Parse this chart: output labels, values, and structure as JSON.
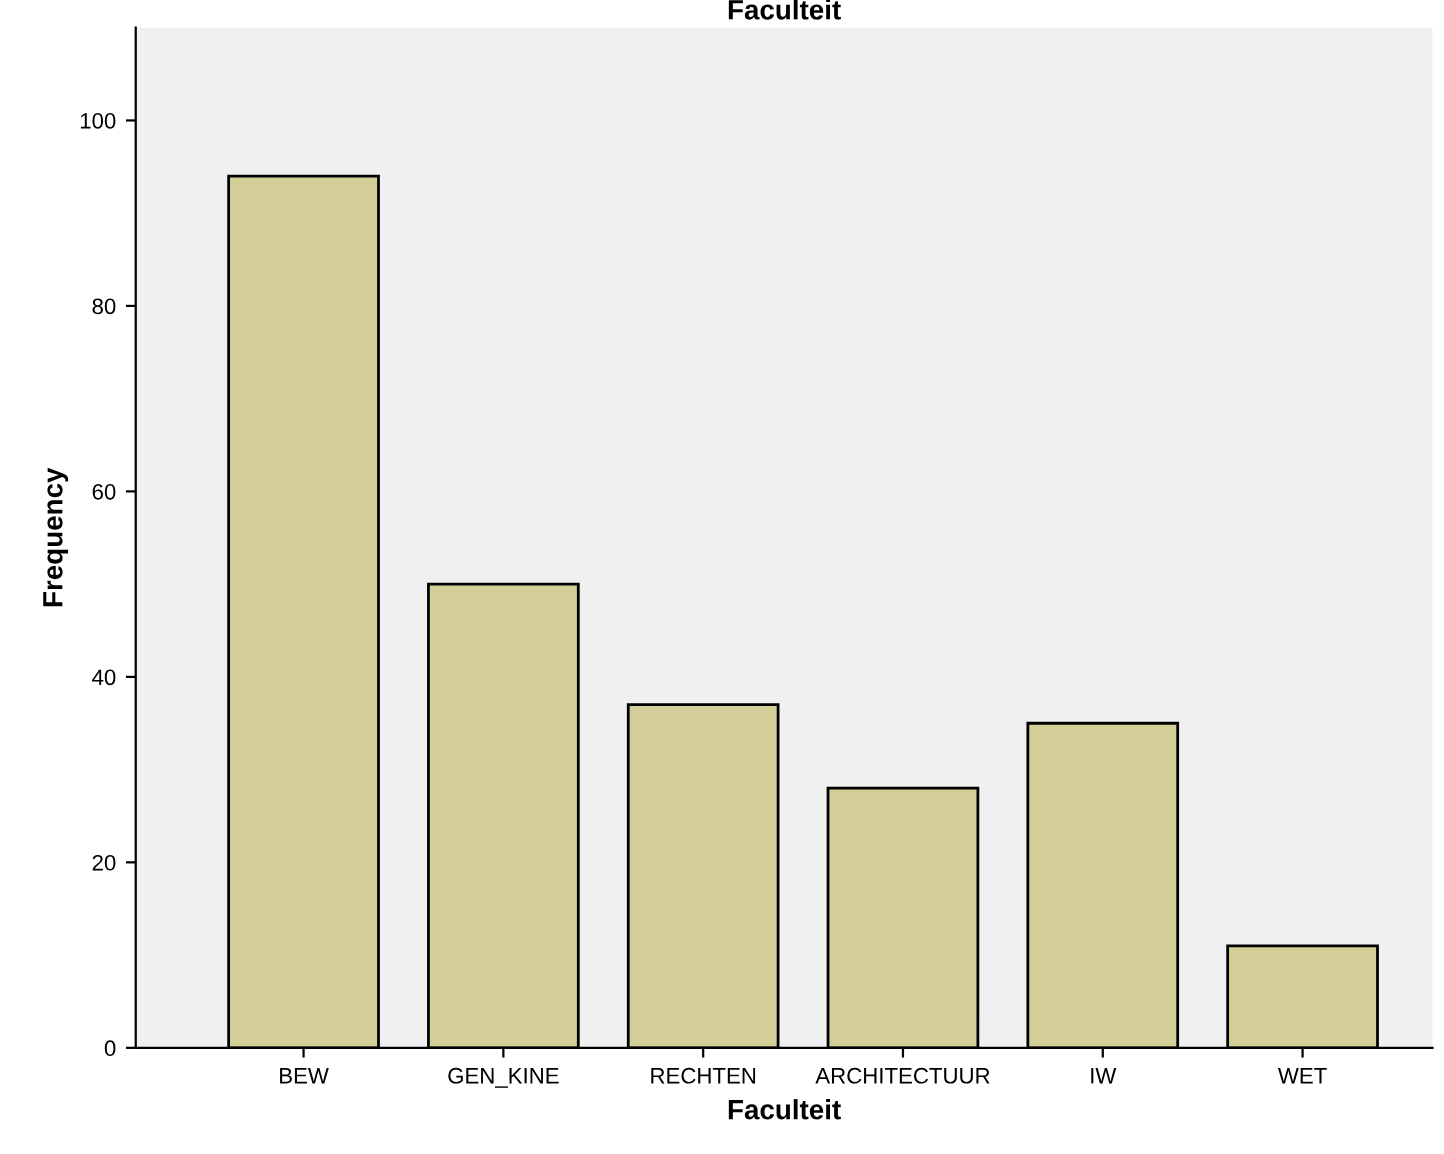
{
  "chart_data": {
    "type": "bar",
    "title": "Faculteit",
    "xlabel": "Faculteit",
    "ylabel": "Frequency",
    "categories": [
      "BEW",
      "GEN_KINE",
      "RECHTEN",
      "ARCHITECTUUR",
      "IW",
      "WET"
    ],
    "values": [
      94,
      50,
      37,
      28,
      35,
      11
    ],
    "color": "#d3ce97",
    "ylim": [
      0,
      110
    ],
    "yticks": [
      0,
      20,
      40,
      60,
      80,
      100
    ],
    "grid": false,
    "legend": false
  }
}
